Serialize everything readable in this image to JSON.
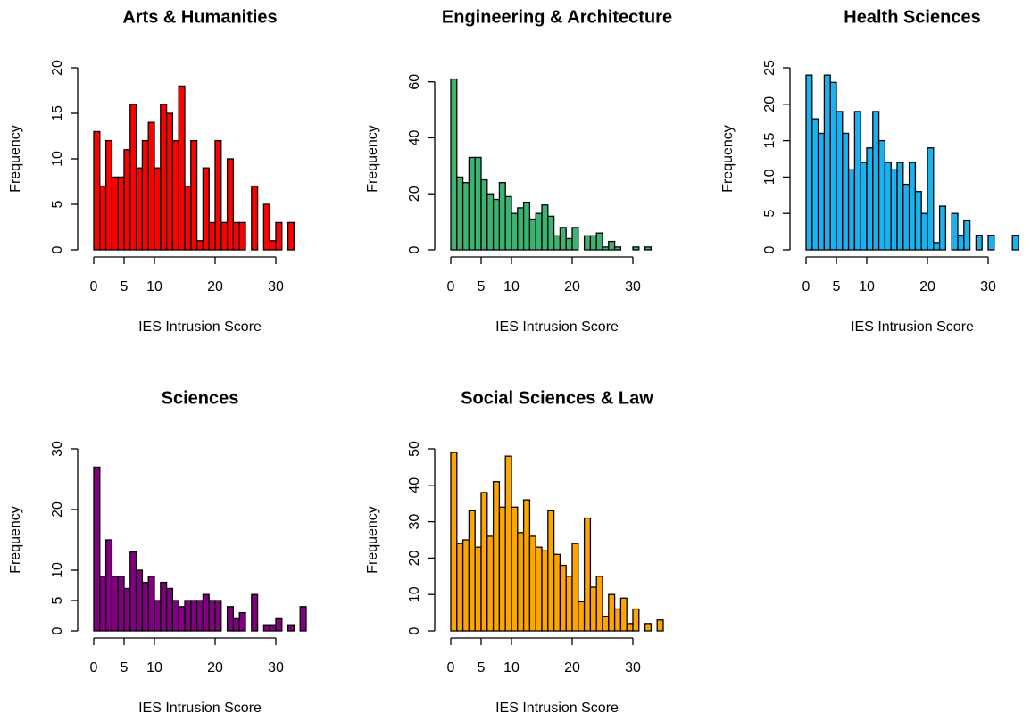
{
  "chart_data": [
    {
      "type": "histogram",
      "title": "Arts & Humanities",
      "x_label": "IES Intrusion Score",
      "y_label": "Frequency",
      "color": "#ff0000",
      "bins": [
        0,
        1,
        2,
        3,
        4,
        5,
        6,
        7,
        8,
        9,
        10,
        11,
        12,
        13,
        14,
        15,
        16,
        17,
        18,
        19,
        20,
        21,
        22,
        23,
        24,
        25,
        26,
        27,
        28,
        29,
        30,
        31,
        32,
        33
      ],
      "counts": [
        13,
        7,
        12,
        8,
        8,
        11,
        16,
        9,
        12,
        14,
        9,
        16,
        15,
        12,
        18,
        7,
        12,
        1,
        9,
        3,
        12,
        3,
        10,
        3,
        3,
        0,
        7,
        0,
        5,
        1,
        3,
        0,
        3
      ],
      "xlim": [
        0,
        35
      ],
      "xticks": [
        0,
        5,
        10,
        20,
        30
      ],
      "ylim": [
        0,
        20
      ],
      "yticks": [
        0,
        5,
        10,
        15,
        20
      ]
    },
    {
      "type": "histogram",
      "title": "Engineering & Architecture",
      "x_label": "IES Intrusion Score",
      "y_label": "Frequency",
      "color": "#3cb371",
      "bins": [
        0,
        1,
        2,
        3,
        4,
        5,
        6,
        7,
        8,
        9,
        10,
        11,
        12,
        13,
        14,
        15,
        16,
        17,
        18,
        19,
        20,
        21,
        22,
        23,
        24,
        25,
        26,
        27,
        28,
        29,
        30,
        31,
        32,
        33
      ],
      "counts": [
        61,
        26,
        24,
        33,
        33,
        25,
        20,
        18,
        24,
        19,
        13,
        15,
        17,
        11,
        13,
        16,
        12,
        5,
        8,
        4,
        8,
        0,
        5,
        5,
        6,
        1,
        3,
        1,
        0,
        0,
        1,
        0,
        1
      ],
      "xlim": [
        0,
        35
      ],
      "xticks": [
        0,
        5,
        10,
        20,
        30
      ],
      "ylim": [
        0,
        65
      ],
      "yticks": [
        0,
        20,
        40,
        60
      ]
    },
    {
      "type": "histogram",
      "title": "Health Sciences",
      "x_label": "IES Intrusion Score",
      "y_label": "Frequency",
      "color": "#1ab2ee",
      "bins": [
        0,
        1,
        2,
        3,
        4,
        5,
        6,
        7,
        8,
        9,
        10,
        11,
        12,
        13,
        14,
        15,
        16,
        17,
        18,
        19,
        20,
        21,
        22,
        23,
        24,
        25,
        26,
        27,
        28,
        29,
        30,
        31,
        32,
        33,
        34,
        35
      ],
      "counts": [
        24,
        18,
        16,
        24,
        23,
        19,
        16,
        11,
        19,
        12,
        14,
        19,
        15,
        12,
        11,
        12,
        9,
        12,
        8,
        5,
        14,
        1,
        6,
        0,
        5,
        2,
        4,
        0,
        2,
        0,
        2,
        0,
        0,
        0,
        2
      ],
      "xlim": [
        0,
        35
      ],
      "xticks": [
        0,
        5,
        10,
        20,
        30
      ],
      "ylim": [
        0,
        25
      ],
      "yticks": [
        0,
        5,
        10,
        15,
        20,
        25
      ]
    },
    {
      "type": "histogram",
      "title": "Sciences",
      "x_label": "IES Intrusion Score",
      "y_label": "Frequency",
      "color": "#800080",
      "bins": [
        0,
        1,
        2,
        3,
        4,
        5,
        6,
        7,
        8,
        9,
        10,
        11,
        12,
        13,
        14,
        15,
        16,
        17,
        18,
        19,
        20,
        21,
        22,
        23,
        24,
        25,
        26,
        27,
        28,
        29,
        30,
        31,
        32,
        33,
        34,
        35
      ],
      "counts": [
        27,
        9,
        15,
        9,
        9,
        7,
        13,
        10,
        8,
        9,
        5,
        8,
        7,
        5,
        4,
        5,
        5,
        5,
        6,
        5,
        5,
        0,
        4,
        2,
        3,
        0,
        6,
        0,
        1,
        1,
        2,
        0,
        1,
        0,
        4
      ],
      "xlim": [
        0,
        35
      ],
      "xticks": [
        0,
        5,
        10,
        20,
        30
      ],
      "ylim": [
        0,
        30
      ],
      "yticks": [
        0,
        5,
        10,
        20,
        30
      ]
    },
    {
      "type": "histogram",
      "title": "Social Sciences & Law",
      "x_label": "IES Intrusion Score",
      "y_label": "Frequency",
      "color": "#ffa500",
      "bins": [
        0,
        1,
        2,
        3,
        4,
        5,
        6,
        7,
        8,
        9,
        10,
        11,
        12,
        13,
        14,
        15,
        16,
        17,
        18,
        19,
        20,
        21,
        22,
        23,
        24,
        25,
        26,
        27,
        28,
        29,
        30,
        31,
        32,
        33,
        34,
        35
      ],
      "counts": [
        49,
        24,
        25,
        33,
        23,
        38,
        26,
        41,
        34,
        48,
        34,
        27,
        36,
        26,
        23,
        22,
        33,
        21,
        18,
        15,
        24,
        8,
        31,
        12,
        15,
        4,
        10,
        6,
        9,
        2,
        6,
        0,
        2,
        0,
        3
      ],
      "xlim": [
        0,
        35
      ],
      "xticks": [
        0,
        5,
        10,
        20,
        30
      ],
      "ylim": [
        0,
        50
      ],
      "yticks": [
        0,
        10,
        20,
        30,
        40,
        50
      ]
    }
  ]
}
